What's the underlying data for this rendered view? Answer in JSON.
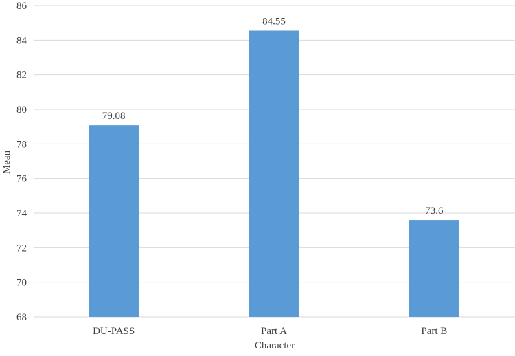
{
  "chart_data": {
    "type": "bar",
    "title": "",
    "xlabel": "Character",
    "ylabel": "Mean",
    "categories": [
      "DU-PASS",
      "Part A",
      "Part B"
    ],
    "values": [
      79.08,
      84.55,
      73.6
    ],
    "data_labels": [
      "79.08",
      "84.55",
      "73.6"
    ],
    "ylim": [
      68,
      86
    ],
    "yticks": [
      "68",
      "70",
      "72",
      "74",
      "76",
      "78",
      "80",
      "82",
      "84",
      "86"
    ],
    "ytick_values": [
      68,
      70,
      72,
      74,
      76,
      78,
      80,
      82,
      84,
      86
    ],
    "grid": true,
    "legend": "none",
    "colors": {
      "bar": "#5b9bd5",
      "grid": "#d9d9d9",
      "text": "#404040"
    }
  }
}
